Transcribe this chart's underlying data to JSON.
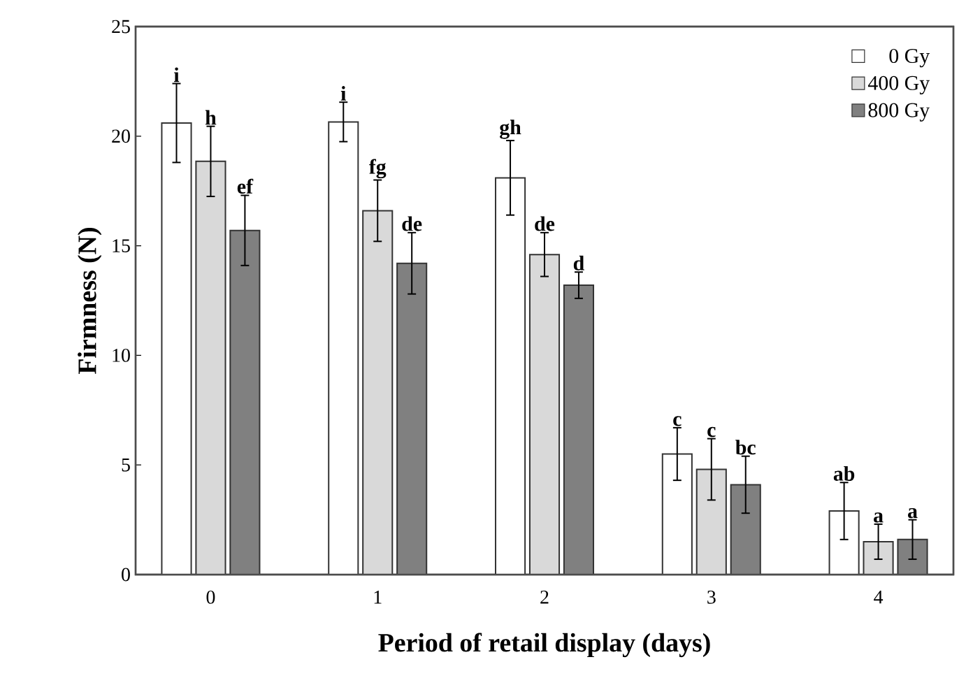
{
  "chart_data": {
    "type": "bar",
    "xlabel": "Period of retail display (days)",
    "ylabel": "Firmness (N)",
    "categories": [
      "0",
      "1",
      "2",
      "3",
      "4"
    ],
    "series": [
      {
        "name": "0 Gy",
        "color": "#ffffff",
        "values": [
          20.6,
          20.65,
          18.1,
          5.5,
          2.9
        ],
        "errors": [
          1.8,
          0.9,
          1.7,
          1.2,
          1.3
        ]
      },
      {
        "name": "400 Gy",
        "color": "#d9d9d9",
        "values": [
          18.85,
          16.6,
          14.6,
          4.8,
          1.5
        ],
        "errors": [
          1.6,
          1.4,
          1.0,
          1.4,
          0.8
        ]
      },
      {
        "name": "800 Gy",
        "color": "#808080",
        "values": [
          15.7,
          14.2,
          13.2,
          4.1,
          1.6
        ],
        "errors": [
          1.6,
          1.4,
          0.6,
          1.3,
          0.9
        ]
      }
    ],
    "ylim": [
      0,
      25
    ],
    "yticks": [
      0,
      5,
      10,
      15,
      20,
      25
    ],
    "grid": false,
    "legend": "top right",
    "annotations": [
      "i",
      "h",
      "ef",
      "i",
      "fg",
      "de",
      "gh",
      "de",
      "d",
      "c",
      "c",
      "bc",
      "ab",
      "a",
      "a"
    ]
  }
}
